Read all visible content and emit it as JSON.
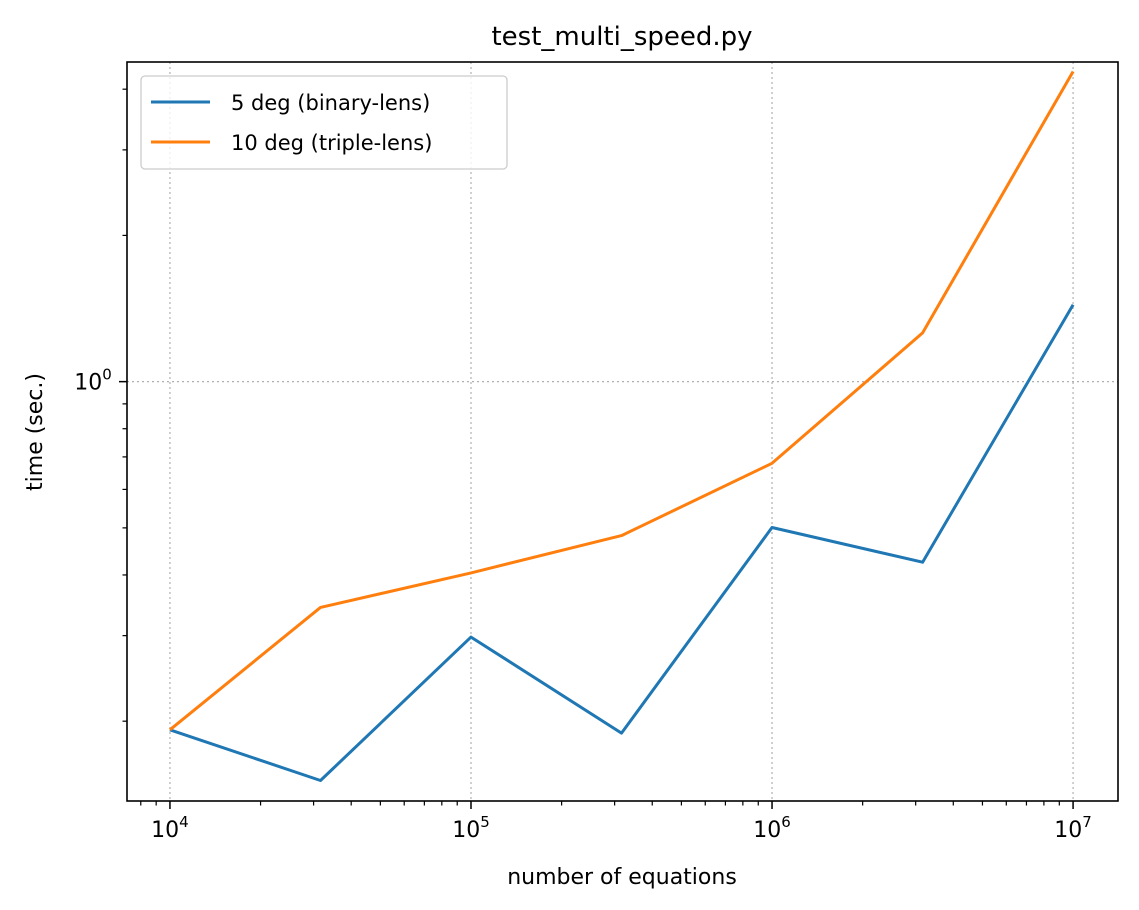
{
  "chart_data": {
    "type": "line",
    "title": "test_multi_speed.py",
    "xlabel": "number of equations",
    "ylabel": "time (sec.)",
    "xscale": "log",
    "yscale": "log",
    "xlim": [
      7200,
      14100000
    ],
    "ylim": [
      0.137,
      4.55
    ],
    "grid": true,
    "legend_position": "upper-left",
    "x": [
      10000,
      31623,
      100000,
      316228,
      1000000,
      3162278,
      10000000
    ],
    "x_ticks": [
      {
        "value": 10000,
        "base": "10",
        "exp": "4"
      },
      {
        "value": 100000,
        "base": "10",
        "exp": "5"
      },
      {
        "value": 1000000,
        "base": "10",
        "exp": "6"
      },
      {
        "value": 10000000,
        "base": "10",
        "exp": "7"
      }
    ],
    "y_ticks": [
      {
        "value": 1,
        "base": "10",
        "exp": "0"
      }
    ],
    "series": [
      {
        "name": "5 deg (binary-lens)",
        "color": "#1f77b4",
        "values": [
          0.192,
          0.151,
          0.298,
          0.189,
          0.501,
          0.425,
          1.44
        ]
      },
      {
        "name": "10 deg (triple-lens)",
        "color": "#ff7f0e",
        "values": [
          0.192,
          0.343,
          0.404,
          0.482,
          0.679,
          1.26,
          4.35
        ]
      }
    ]
  }
}
